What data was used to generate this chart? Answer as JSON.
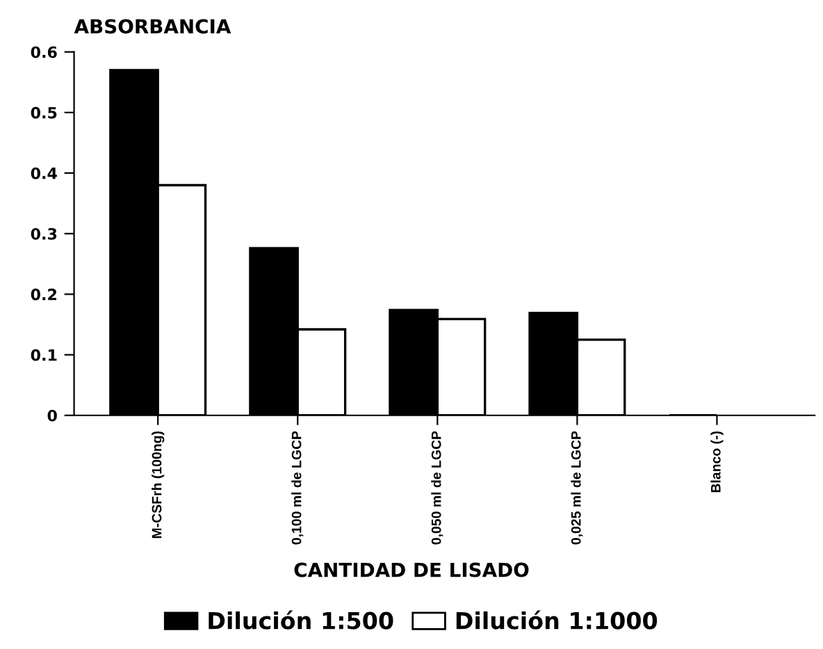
{
  "chart_data": {
    "type": "bar",
    "ylabel": "ABSORBANCIA",
    "xlabel": "CANTIDAD DE LISADO",
    "categories": [
      "M-CSFrh (100ng)",
      "0,100 ml de LGCP",
      "0,050 ml de LGCP",
      "0,025 ml de LGCP",
      "Blanco (-)"
    ],
    "series": [
      {
        "name": "Dilución 1:500",
        "color": "#000000",
        "values": [
          0.57,
          0.276,
          0.174,
          0.169,
          0
        ]
      },
      {
        "name": "Dilución 1:1000",
        "color": "#ffffff",
        "values": [
          0.38,
          0.142,
          0.159,
          0.125,
          0
        ]
      }
    ],
    "ylim": [
      0,
      0.6
    ],
    "yticks": [
      {
        "value": 0,
        "label": "0"
      },
      0.1,
      0.2,
      0.3,
      0.4,
      0.5,
      0.6
    ],
    "grid": false,
    "legend": "bottom"
  }
}
